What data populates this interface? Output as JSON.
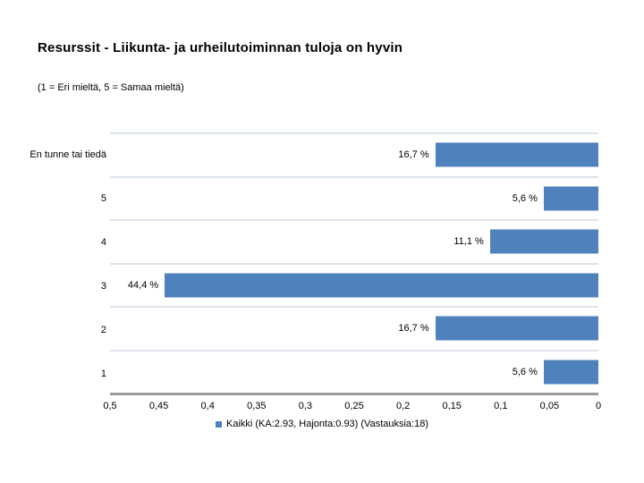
{
  "title": "Resurssit - Liikunta- ja urheilutoiminnan tuloja on hyvin",
  "subtitle": "(1 = Eri mieltä, 5 = Samaa mieltä)",
  "chart_data": {
    "type": "bar",
    "orientation": "horizontal",
    "title": "Resurssit - Liikunta- ja urheilutoiminnan tuloja on hyvin",
    "subtitle": "(1 = Eri mieltä, 5 = Samaa mieltä)",
    "categories": [
      "En tunne tai tiedä",
      "5",
      "4",
      "3",
      "2",
      "1"
    ],
    "values": [
      16.7,
      5.6,
      11.1,
      44.4,
      16.7,
      5.6
    ],
    "value_labels": [
      "16,7 %",
      "5,6 %",
      "11,1 %",
      "44,4 %",
      "16,7 %",
      "5,6 %"
    ],
    "x_axis": {
      "min": 0,
      "max": 0.5,
      "reversed": true,
      "tick_labels": [
        "0,5",
        "0,45",
        "0,4",
        "0,35",
        "0,3",
        "0,25",
        "0,2",
        "0,15",
        "0,1",
        "0,05",
        "0"
      ]
    },
    "grid": "horizontal-row-separators-only",
    "legend": {
      "position": "bottom-center",
      "label": "Kaikki (KA:2.93, Hajonta:0.93) (Vastauksia:18)"
    },
    "colors": {
      "bar": "#4f81bd",
      "gridline": "#dde4eb",
      "axis_line": "#9b9b9b",
      "text": "#000000",
      "background": "#ffffff"
    }
  }
}
